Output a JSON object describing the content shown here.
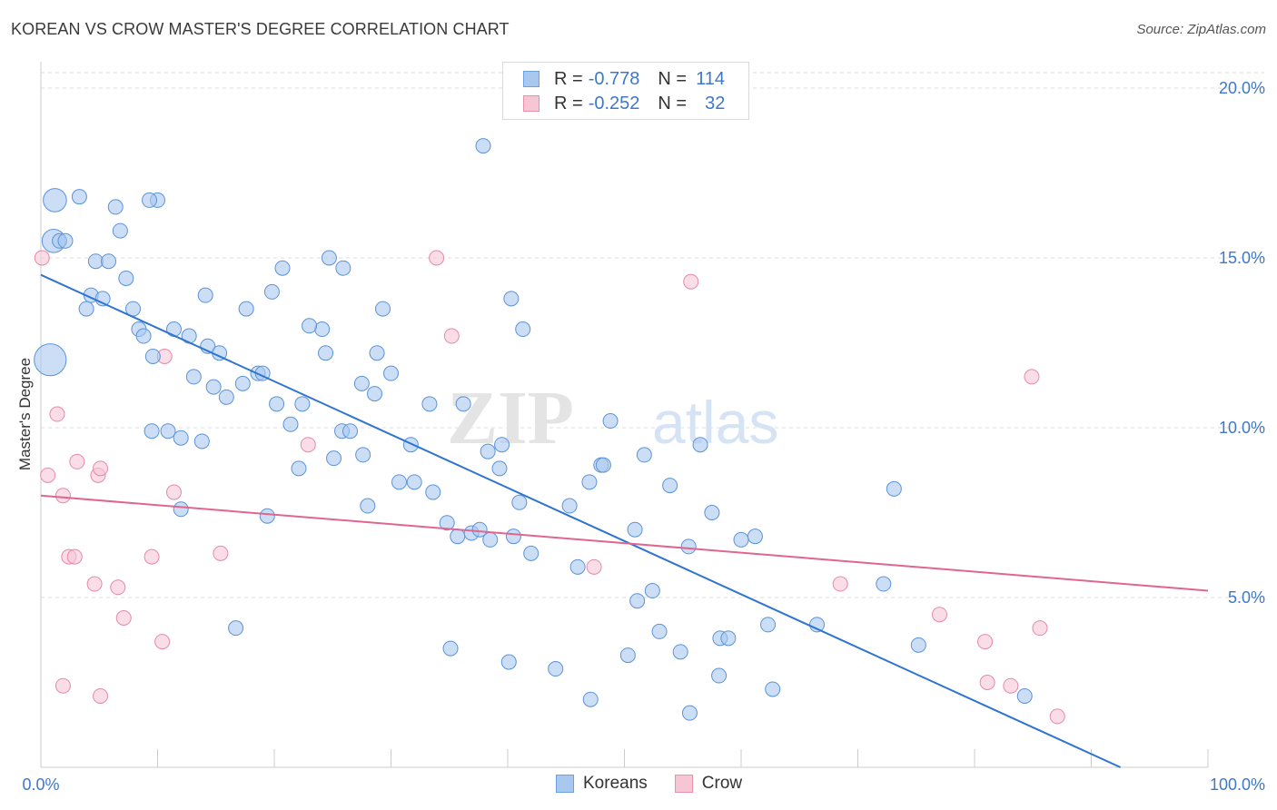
{
  "header": {
    "title": "KOREAN VS CROW MASTER'S DEGREE CORRELATION CHART",
    "source": "Source: ZipAtlas.com"
  },
  "watermark": {
    "zip": "ZIP",
    "atlas": "atlas"
  },
  "legend": {
    "rows": [
      {
        "r_label": "R =",
        "r_value": "-0.778",
        "n_label": "N =",
        "n_value": "114",
        "color": "#a9c8f0",
        "border": "#6a9fe0"
      },
      {
        "r_label": "R =",
        "r_value": "-0.252",
        "n_label": "N =",
        "n_value": "32",
        "color": "#f7c6d5",
        "border": "#e890ae"
      }
    ]
  },
  "bottom_legend": {
    "koreans": "Koreans",
    "crow": "Crow"
  },
  "colors": {
    "koreans_fill": "#a9c8f0",
    "koreans_stroke": "#5b93d8",
    "koreans_line": "#2f74d0",
    "crow_fill": "#f7c6d5",
    "crow_stroke": "#e58aa9",
    "crow_line": "#e0668f",
    "grid": "#dddddd",
    "tick_text": "#3f78c8"
  },
  "chart_data": {
    "type": "scatter",
    "title": "KOREAN VS CROW MASTER'S DEGREE CORRELATION CHART",
    "xlabel": "",
    "ylabel": "Master's Degree",
    "xlim": [
      0,
      100
    ],
    "ylim": [
      0,
      20
    ],
    "x_tick_labels": [
      "0.0%",
      "100.0%"
    ],
    "y_ticks": [
      5,
      10,
      15,
      20
    ],
    "y_tick_labels": [
      "5.0%",
      "10.0%",
      "15.0%",
      "20.0%"
    ],
    "grid": "horizontal dashed",
    "legend_position": "top-center",
    "series": [
      {
        "name": "Koreans",
        "trend": {
          "x": [
            0,
            92.5
          ],
          "y": [
            14.5,
            0.0
          ]
        },
        "points": [
          [
            1.2,
            16.7,
            1.6
          ],
          [
            1.1,
            15.5,
            1.6
          ],
          [
            0.8,
            12.0,
            2.2
          ],
          [
            3.3,
            16.8,
            1
          ],
          [
            6.4,
            16.5,
            1
          ],
          [
            10,
            16.7,
            1
          ],
          [
            6.8,
            15.8,
            1
          ],
          [
            1.6,
            15.5,
            1
          ],
          [
            2.1,
            15.5,
            1
          ],
          [
            4.7,
            14.9,
            1
          ],
          [
            5.8,
            14.9,
            1
          ],
          [
            7.3,
            14.4,
            1
          ],
          [
            4.3,
            13.9,
            1
          ],
          [
            5.3,
            13.8,
            1
          ],
          [
            3.9,
            13.5,
            1
          ],
          [
            7.9,
            13.5,
            1
          ],
          [
            8.4,
            12.9,
            1
          ],
          [
            8.8,
            12.7,
            1
          ],
          [
            11.4,
            12.9,
            1
          ],
          [
            12.7,
            12.7,
            1
          ],
          [
            9.6,
            12.1,
            1
          ],
          [
            14.3,
            12.4,
            1
          ],
          [
            15.3,
            12.2,
            1
          ],
          [
            14.1,
            13.9,
            1
          ],
          [
            17.6,
            13.5,
            1
          ],
          [
            19.8,
            14.0,
            1
          ],
          [
            20.7,
            14.7,
            1
          ],
          [
            24.1,
            12.9,
            1
          ],
          [
            24.4,
            12.2,
            1
          ],
          [
            23.0,
            13.0,
            1
          ],
          [
            24.7,
            15.0,
            1
          ],
          [
            25.9,
            14.7,
            1
          ],
          [
            29.3,
            13.5,
            1
          ],
          [
            28.8,
            12.2,
            1
          ],
          [
            30.0,
            11.6,
            1
          ],
          [
            13.1,
            11.5,
            1
          ],
          [
            14.8,
            11.2,
            1
          ],
          [
            15.9,
            10.9,
            1
          ],
          [
            17.3,
            11.3,
            1
          ],
          [
            18.6,
            11.6,
            1
          ],
          [
            19.0,
            11.6,
            1
          ],
          [
            20.2,
            10.7,
            1
          ],
          [
            22.4,
            10.7,
            1
          ],
          [
            21.4,
            10.1,
            1
          ],
          [
            27.5,
            11.3,
            1
          ],
          [
            28.6,
            11.0,
            1
          ],
          [
            33.3,
            10.7,
            1
          ],
          [
            36.2,
            10.7,
            1
          ],
          [
            37.9,
            18.3,
            1
          ],
          [
            40.3,
            13.8,
            1
          ],
          [
            9.5,
            9.9,
            1
          ],
          [
            10.9,
            9.9,
            1
          ],
          [
            12.0,
            9.7,
            1
          ],
          [
            13.8,
            9.6,
            1
          ],
          [
            25.8,
            9.9,
            1
          ],
          [
            26.5,
            9.9,
            1
          ],
          [
            22.1,
            8.8,
            1
          ],
          [
            25.1,
            9.1,
            1
          ],
          [
            27.6,
            9.2,
            1
          ],
          [
            31.7,
            9.5,
            1
          ],
          [
            30.7,
            8.4,
            1
          ],
          [
            32.0,
            8.4,
            1
          ],
          [
            38.3,
            9.3,
            1
          ],
          [
            39.3,
            8.8,
            1
          ],
          [
            39.5,
            9.5,
            1
          ],
          [
            12.0,
            7.6,
            1
          ],
          [
            19.4,
            7.4,
            1
          ],
          [
            28.0,
            7.7,
            1
          ],
          [
            33.6,
            8.1,
            1
          ],
          [
            34.8,
            7.2,
            1
          ],
          [
            35.7,
            6.8,
            1
          ],
          [
            36.9,
            6.9,
            1
          ],
          [
            37.6,
            7.0,
            1
          ],
          [
            38.5,
            6.7,
            1
          ],
          [
            40.5,
            6.8,
            1
          ],
          [
            42.0,
            6.3,
            1
          ],
          [
            41.0,
            7.8,
            1
          ],
          [
            45.3,
            7.7,
            1
          ],
          [
            48.8,
            10.2,
            1
          ],
          [
            48.0,
            8.9,
            1
          ],
          [
            48.2,
            8.9,
            1
          ],
          [
            47.0,
            8.4,
            1
          ],
          [
            51.7,
            9.2,
            1
          ],
          [
            53.9,
            8.3,
            1
          ],
          [
            50.9,
            7.0,
            1
          ],
          [
            55.5,
            6.5,
            1
          ],
          [
            57.5,
            7.5,
            1
          ],
          [
            60.0,
            6.7,
            1
          ],
          [
            61.2,
            6.8,
            1
          ],
          [
            56.5,
            9.5,
            1
          ],
          [
            46.0,
            5.9,
            1
          ],
          [
            51.1,
            4.9,
            1
          ],
          [
            52.4,
            5.2,
            1
          ],
          [
            53.0,
            4.0,
            1
          ],
          [
            54.8,
            3.4,
            1
          ],
          [
            55.6,
            1.6,
            1
          ],
          [
            58.1,
            2.7,
            1
          ],
          [
            58.2,
            3.8,
            1
          ],
          [
            58.9,
            3.8,
            1
          ],
          [
            62.7,
            2.3,
            1
          ],
          [
            62.3,
            4.2,
            1
          ],
          [
            66.5,
            4.2,
            1
          ],
          [
            73.1,
            8.2,
            1
          ],
          [
            72.2,
            5.4,
            1
          ],
          [
            75.2,
            3.6,
            1
          ],
          [
            84.3,
            2.1,
            1
          ],
          [
            40.1,
            3.1,
            1
          ],
          [
            44.1,
            2.9,
            1
          ],
          [
            47.1,
            2.0,
            1
          ],
          [
            50.3,
            3.3,
            1
          ],
          [
            35.1,
            3.5,
            1
          ],
          [
            16.7,
            4.1,
            1
          ],
          [
            41.3,
            12.9,
            1
          ],
          [
            9.3,
            16.7,
            1
          ]
        ]
      },
      {
        "name": "Crow",
        "trend": {
          "x": [
            0,
            100
          ],
          "y": [
            8.0,
            5.2
          ]
        },
        "points": [
          [
            0.1,
            15.0,
            1
          ],
          [
            1.4,
            10.4,
            1
          ],
          [
            0.6,
            8.6,
            1
          ],
          [
            1.9,
            8.0,
            1
          ],
          [
            3.1,
            9.0,
            1
          ],
          [
            4.9,
            8.6,
            1
          ],
          [
            5.1,
            8.8,
            1
          ],
          [
            2.4,
            6.2,
            1
          ],
          [
            2.9,
            6.2,
            1
          ],
          [
            4.6,
            5.4,
            1
          ],
          [
            6.6,
            5.3,
            1
          ],
          [
            7.1,
            4.4,
            1
          ],
          [
            9.5,
            6.2,
            1
          ],
          [
            10.4,
            3.7,
            1
          ],
          [
            11.4,
            8.1,
            1
          ],
          [
            10.6,
            12.1,
            1
          ],
          [
            15.4,
            6.3,
            1
          ],
          [
            22.9,
            9.5,
            1
          ],
          [
            33.9,
            15.0,
            1
          ],
          [
            35.2,
            12.7,
            1
          ],
          [
            47.4,
            5.9,
            1
          ],
          [
            55.7,
            14.3,
            1
          ],
          [
            68.5,
            5.4,
            1
          ],
          [
            77.0,
            4.5,
            1
          ],
          [
            80.9,
            3.7,
            1
          ],
          [
            81.1,
            2.5,
            1
          ],
          [
            83.1,
            2.4,
            1
          ],
          [
            84.9,
            11.5,
            1
          ],
          [
            85.6,
            4.1,
            1
          ],
          [
            87.1,
            1.5,
            1
          ],
          [
            1.9,
            2.4,
            1
          ],
          [
            5.1,
            2.1,
            1
          ]
        ]
      }
    ]
  }
}
